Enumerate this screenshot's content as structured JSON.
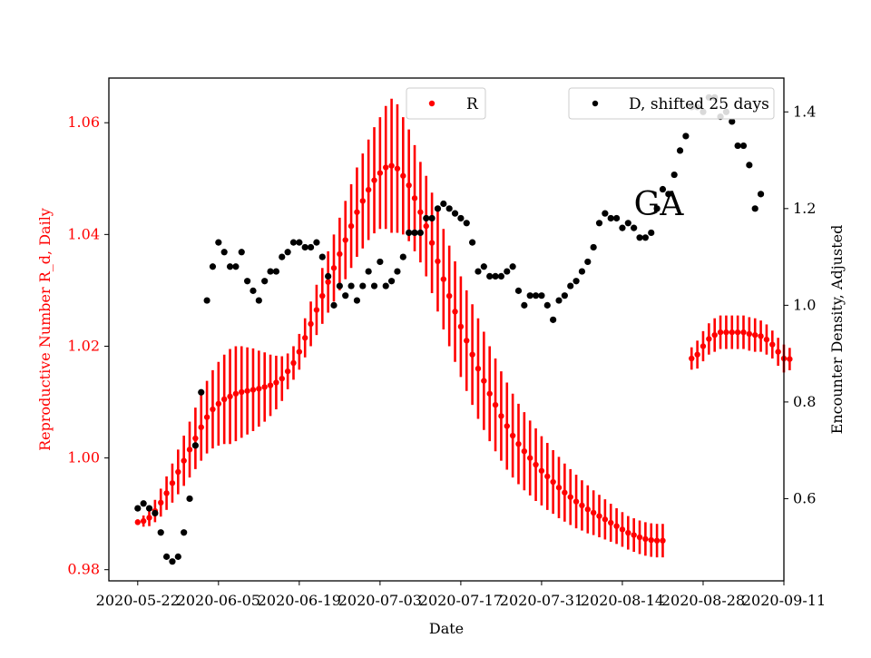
{
  "chart_data": {
    "type": "scatter",
    "title": "",
    "annotation": "GA",
    "xlabel": "Date",
    "ylabel_left": "Reproductive Number R_d, Daily",
    "ylabel_right": "Encounter Density, Adjusted",
    "x_ticks": [
      "2020-05-22",
      "2020-06-05",
      "2020-06-19",
      "2020-07-03",
      "2020-07-17",
      "2020-07-31",
      "2020-08-14",
      "2020-08-28",
      "2020-09-11"
    ],
    "x_range": [
      "2020-05-17",
      "2020-09-11"
    ],
    "y_left_ticks": [
      "0.98",
      "1.00",
      "1.02",
      "1.04",
      "1.06"
    ],
    "y_left_range": [
      0.978,
      1.068
    ],
    "y_right_ticks": [
      "0.6",
      "0.8",
      "1.0",
      "1.2",
      "1.4"
    ],
    "y_right_range": [
      0.43,
      1.47
    ],
    "colors": {
      "R": "#ff0000",
      "D": "#000000",
      "left_axis_text": "#ff0000",
      "right_axis_text": "#000000"
    },
    "legend": {
      "left": {
        "label": "R",
        "placement": "upper-center"
      },
      "right": {
        "label": "D, shifted 25 days",
        "placement": "upper-right"
      }
    },
    "series": [
      {
        "name": "R",
        "axis": "left",
        "start_date": "2020-05-22",
        "marker": "dot-with-errorbar",
        "values": [
          0.9885,
          0.9887,
          0.9893,
          0.9905,
          0.992,
          0.9937,
          0.9955,
          0.9975,
          0.9995,
          1.0015,
          1.0035,
          1.0055,
          1.0073,
          1.0087,
          1.0097,
          1.0105,
          1.011,
          1.0115,
          1.0118,
          1.012,
          1.0122,
          1.0124,
          1.0127,
          1.013,
          1.0135,
          1.0142,
          1.0155,
          1.017,
          1.019,
          1.0215,
          1.024,
          1.0265,
          1.029,
          1.0315,
          1.034,
          1.0365,
          1.039,
          1.0415,
          1.044,
          1.046,
          1.048,
          1.0497,
          1.051,
          1.052,
          1.0523,
          1.0518,
          1.0505,
          1.0488,
          1.0465,
          1.044,
          1.0415,
          1.0385,
          1.0352,
          1.032,
          1.029,
          1.0262,
          1.0235,
          1.021,
          1.0185,
          1.016,
          1.0138,
          1.0115,
          1.0095,
          1.0075,
          1.0057,
          1.004,
          1.0025,
          1.0012,
          1.0,
          0.9988,
          0.9977,
          0.9967,
          0.9957,
          0.9947,
          0.9938,
          0.993,
          0.9922,
          0.9915,
          0.9908,
          0.9902,
          0.9896,
          0.989,
          0.9884,
          0.9878,
          0.9872,
          0.9866,
          0.9862,
          0.9858,
          0.9855,
          0.9853,
          0.9852,
          0.9852,
          null,
          null,
          null,
          null,
          1.0178,
          1.0185,
          1.02,
          1.0213,
          1.022,
          1.0225,
          1.0225,
          1.0225,
          1.0225,
          1.0225,
          1.0222,
          1.022,
          1.0218,
          1.0212,
          1.0203,
          1.019,
          1.0178,
          1.0177
        ],
        "errors": [
          0.0005,
          0.001,
          0.0015,
          0.002,
          0.0025,
          0.003,
          0.0035,
          0.004,
          0.0045,
          0.005,
          0.0055,
          0.006,
          0.0065,
          0.007,
          0.0075,
          0.008,
          0.0085,
          0.0085,
          0.0082,
          0.0078,
          0.0074,
          0.0068,
          0.0062,
          0.0055,
          0.0048,
          0.004,
          0.0032,
          0.003,
          0.0032,
          0.0035,
          0.004,
          0.0045,
          0.005,
          0.0055,
          0.006,
          0.0065,
          0.007,
          0.0075,
          0.008,
          0.0085,
          0.009,
          0.0095,
          0.01,
          0.011,
          0.012,
          0.0115,
          0.0105,
          0.01,
          0.0095,
          0.009,
          0.009,
          0.009,
          0.009,
          0.009,
          0.009,
          0.009,
          0.009,
          0.009,
          0.009,
          0.009,
          0.0088,
          0.0085,
          0.0083,
          0.008,
          0.0078,
          0.0075,
          0.0072,
          0.007,
          0.0067,
          0.0065,
          0.0062,
          0.006,
          0.0057,
          0.0055,
          0.0052,
          0.005,
          0.0048,
          0.0045,
          0.0043,
          0.004,
          0.0038,
          0.0036,
          0.0034,
          0.0032,
          0.0031,
          0.003,
          0.003,
          0.003,
          0.003,
          0.003,
          0.003,
          0.003,
          null,
          null,
          null,
          null,
          0.002,
          0.0025,
          0.0027,
          0.0028,
          0.003,
          0.003,
          0.003,
          0.003,
          0.003,
          0.003,
          0.003,
          0.003,
          0.0028,
          0.0027,
          0.0025,
          0.0025,
          0.0025,
          0.002
        ]
      },
      {
        "name": "D, shifted 25 days",
        "axis": "right",
        "marker": "dot",
        "points": [
          [
            "2020-05-22",
            0.58
          ],
          [
            "2020-05-23",
            0.59
          ],
          [
            "2020-05-24",
            0.58
          ],
          [
            "2020-05-25",
            0.57
          ],
          [
            "2020-05-26",
            0.53
          ],
          [
            "2020-05-27",
            0.48
          ],
          [
            "2020-05-28",
            0.47
          ],
          [
            "2020-05-29",
            0.48
          ],
          [
            "2020-05-30",
            0.53
          ],
          [
            "2020-05-31",
            0.6
          ],
          [
            "2020-06-01",
            0.71
          ],
          [
            "2020-06-02",
            0.82
          ],
          [
            "2020-06-03",
            1.01
          ],
          [
            "2020-06-04",
            1.08
          ],
          [
            "2020-06-05",
            1.13
          ],
          [
            "2020-06-06",
            1.11
          ],
          [
            "2020-06-07",
            1.08
          ],
          [
            "2020-06-08",
            1.08
          ],
          [
            "2020-06-09",
            1.11
          ],
          [
            "2020-06-10",
            1.05
          ],
          [
            "2020-06-11",
            1.03
          ],
          [
            "2020-06-12",
            1.01
          ],
          [
            "2020-06-13",
            1.05
          ],
          [
            "2020-06-14",
            1.07
          ],
          [
            "2020-06-15",
            1.07
          ],
          [
            "2020-06-16",
            1.1
          ],
          [
            "2020-06-17",
            1.11
          ],
          [
            "2020-06-18",
            1.13
          ],
          [
            "2020-06-19",
            1.13
          ],
          [
            "2020-06-20",
            1.12
          ],
          [
            "2020-06-21",
            1.12
          ],
          [
            "2020-06-22",
            1.13
          ],
          [
            "2020-06-23",
            1.1
          ],
          [
            "2020-06-24",
            1.06
          ],
          [
            "2020-06-25",
            1.0
          ],
          [
            "2020-06-26",
            1.04
          ],
          [
            "2020-06-27",
            1.02
          ],
          [
            "2020-06-28",
            1.04
          ],
          [
            "2020-06-29",
            1.01
          ],
          [
            "2020-06-30",
            1.04
          ],
          [
            "2020-07-01",
            1.07
          ],
          [
            "2020-07-02",
            1.04
          ],
          [
            "2020-07-03",
            1.09
          ],
          [
            "2020-07-04",
            1.04
          ],
          [
            "2020-07-05",
            1.05
          ],
          [
            "2020-07-06",
            1.07
          ],
          [
            "2020-07-07",
            1.1
          ],
          [
            "2020-07-08",
            1.15
          ],
          [
            "2020-07-09",
            1.15
          ],
          [
            "2020-07-10",
            1.15
          ],
          [
            "2020-07-11",
            1.18
          ],
          [
            "2020-07-12",
            1.18
          ],
          [
            "2020-07-13",
            1.2
          ],
          [
            "2020-07-14",
            1.21
          ],
          [
            "2020-07-15",
            1.2
          ],
          [
            "2020-07-16",
            1.19
          ],
          [
            "2020-07-17",
            1.18
          ],
          [
            "2020-07-18",
            1.17
          ],
          [
            "2020-07-19",
            1.13
          ],
          [
            "2020-07-20",
            1.07
          ],
          [
            "2020-07-21",
            1.08
          ],
          [
            "2020-07-22",
            1.06
          ],
          [
            "2020-07-23",
            1.06
          ],
          [
            "2020-07-24",
            1.06
          ],
          [
            "2020-07-25",
            1.07
          ],
          [
            "2020-07-26",
            1.08
          ],
          [
            "2020-07-27",
            1.03
          ],
          [
            "2020-07-28",
            1.0
          ],
          [
            "2020-07-29",
            1.02
          ],
          [
            "2020-07-30",
            1.02
          ],
          [
            "2020-07-31",
            1.02
          ],
          [
            "2020-08-01",
            1.0
          ],
          [
            "2020-08-02",
            0.97
          ],
          [
            "2020-08-03",
            1.01
          ],
          [
            "2020-08-04",
            1.02
          ],
          [
            "2020-08-05",
            1.04
          ],
          [
            "2020-08-06",
            1.05
          ],
          [
            "2020-08-07",
            1.07
          ],
          [
            "2020-08-08",
            1.09
          ],
          [
            "2020-08-09",
            1.12
          ],
          [
            "2020-08-10",
            1.17
          ],
          [
            "2020-08-11",
            1.19
          ],
          [
            "2020-08-12",
            1.18
          ],
          [
            "2020-08-13",
            1.18
          ],
          [
            "2020-08-14",
            1.16
          ],
          [
            "2020-08-15",
            1.17
          ],
          [
            "2020-08-16",
            1.16
          ],
          [
            "2020-08-17",
            1.14
          ],
          [
            "2020-08-18",
            1.14
          ],
          [
            "2020-08-19",
            1.15
          ],
          [
            "2020-08-20",
            1.2
          ],
          [
            "2020-08-21",
            1.24
          ],
          [
            "2020-08-22",
            1.23
          ],
          [
            "2020-08-23",
            1.27
          ],
          [
            "2020-08-24",
            1.32
          ],
          [
            "2020-08-25",
            1.35
          ],
          [
            "2020-08-26",
            1.41
          ],
          [
            "2020-08-27",
            1.41
          ],
          [
            "2020-08-28",
            1.4
          ],
          [
            "2020-08-29",
            1.43
          ],
          [
            "2020-08-30",
            1.43
          ],
          [
            "2020-08-31",
            1.39
          ],
          [
            "2020-09-01",
            1.4
          ],
          [
            "2020-09-02",
            1.38
          ],
          [
            "2020-09-03",
            1.33
          ],
          [
            "2020-09-04",
            1.33
          ],
          [
            "2020-09-05",
            1.29
          ],
          [
            "2020-09-06",
            1.2
          ],
          [
            "2020-09-07",
            1.23
          ]
        ]
      }
    ]
  }
}
